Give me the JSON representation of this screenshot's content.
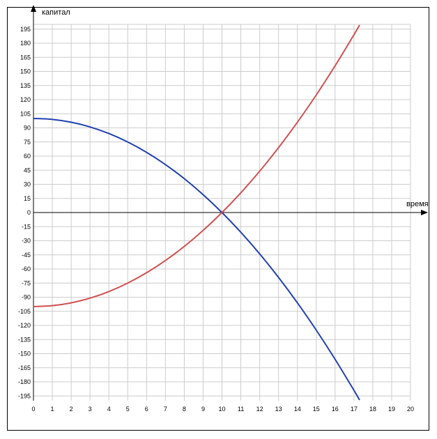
{
  "chart_data": {
    "type": "line",
    "xlabel": "время",
    "ylabel": "капитал",
    "xlim": [
      0,
      20
    ],
    "ylim": [
      -200,
      200
    ],
    "x_ticks": [
      0,
      1,
      2,
      3,
      4,
      5,
      6,
      7,
      8,
      9,
      10,
      11,
      12,
      13,
      14,
      15,
      16,
      17,
      18,
      19,
      20
    ],
    "y_ticks": [
      195,
      180,
      165,
      150,
      135,
      120,
      105,
      90,
      75,
      60,
      45,
      30,
      15,
      0,
      -15,
      -30,
      -45,
      -60,
      -75,
      -90,
      -105,
      -120,
      -135,
      -150,
      -165,
      -180,
      -195
    ],
    "grid": true,
    "series": [
      {
        "color": "#2040b0",
        "x": [
          0,
          1,
          2,
          3,
          4,
          5,
          6,
          7,
          8,
          9,
          10,
          11,
          12,
          13,
          14,
          15,
          16,
          17,
          17.3
        ],
        "y": [
          100,
          99,
          96,
          91,
          84,
          75,
          64,
          51,
          36,
          19,
          0,
          -21,
          -44,
          -69,
          -96,
          -125,
          -156,
          -189,
          -199.3
        ]
      },
      {
        "color": "#d05050",
        "x": [
          0,
          1,
          2,
          3,
          4,
          5,
          6,
          7,
          8,
          9,
          10,
          11,
          12,
          13,
          14,
          15,
          16,
          17,
          17.3
        ],
        "y": [
          -100,
          -99,
          -96,
          -91,
          -84,
          -75,
          -64,
          -51,
          -36,
          -19,
          0,
          21,
          44,
          69,
          96,
          125,
          156,
          189,
          199.3
        ]
      }
    ]
  }
}
